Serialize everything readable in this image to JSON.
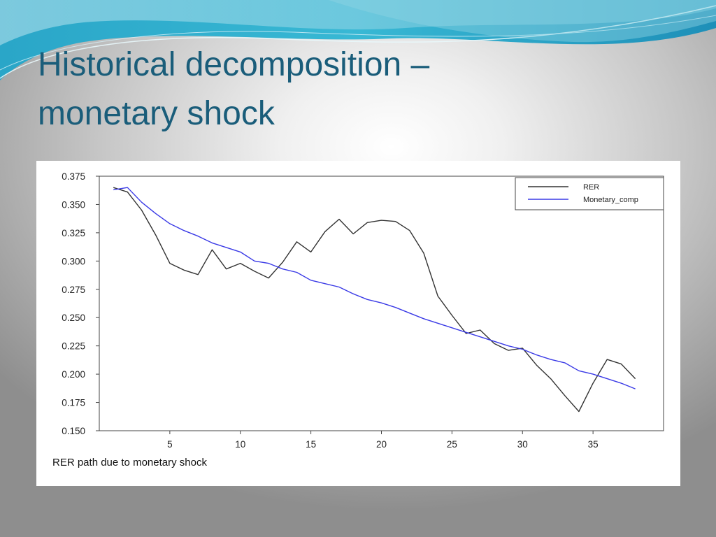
{
  "slide": {
    "title_line1": "Historical decomposition –",
    "title_line2": "monetary shock",
    "title_color": "#1a5d7a"
  },
  "chart_data": {
    "type": "line",
    "caption": "RER path due to monetary shock",
    "xlim": [
      0,
      40
    ],
    "ylim": [
      0.15,
      0.375
    ],
    "x_ticks": [
      5,
      10,
      15,
      20,
      25,
      30,
      35
    ],
    "y_ticks": [
      0.15,
      0.175,
      0.2,
      0.225,
      0.25,
      0.275,
      0.3,
      0.325,
      0.35,
      0.375
    ],
    "y_tick_labels": [
      "0.150",
      "0.175",
      "0.200",
      "0.225",
      "0.250",
      "0.275",
      "0.300",
      "0.325",
      "0.350",
      "0.375"
    ],
    "grid": false,
    "legend_position": "top-right",
    "x": [
      1,
      2,
      3,
      4,
      5,
      6,
      7,
      8,
      9,
      10,
      11,
      12,
      13,
      14,
      15,
      16,
      17,
      18,
      19,
      20,
      21,
      22,
      23,
      24,
      25,
      26,
      27,
      28,
      29,
      30,
      31,
      32,
      33,
      34,
      35,
      36,
      37,
      38
    ],
    "series": [
      {
        "name": "RER",
        "color": "#333333",
        "values": [
          0.365,
          0.361,
          0.345,
          0.323,
          0.298,
          0.292,
          0.288,
          0.31,
          0.293,
          0.298,
          0.291,
          0.285,
          0.299,
          0.317,
          0.308,
          0.326,
          0.337,
          0.324,
          0.334,
          0.336,
          0.335,
          0.327,
          0.307,
          0.269,
          0.252,
          0.236,
          0.239,
          0.227,
          0.221,
          0.223,
          0.208,
          0.196,
          0.181,
          0.167,
          0.192,
          0.213,
          0.209,
          0.196
        ]
      },
      {
        "name": "Monetary_comp",
        "color": "#3a3ae6",
        "values": [
          0.363,
          0.365,
          0.352,
          0.342,
          0.333,
          0.327,
          0.322,
          0.316,
          0.312,
          0.308,
          0.3,
          0.298,
          0.293,
          0.29,
          0.283,
          0.28,
          0.277,
          0.271,
          0.266,
          0.263,
          0.259,
          0.254,
          0.249,
          0.245,
          0.241,
          0.237,
          0.233,
          0.229,
          0.225,
          0.222,
          0.217,
          0.213,
          0.21,
          0.203,
          0.2,
          0.196,
          0.192,
          0.187
        ]
      }
    ]
  }
}
